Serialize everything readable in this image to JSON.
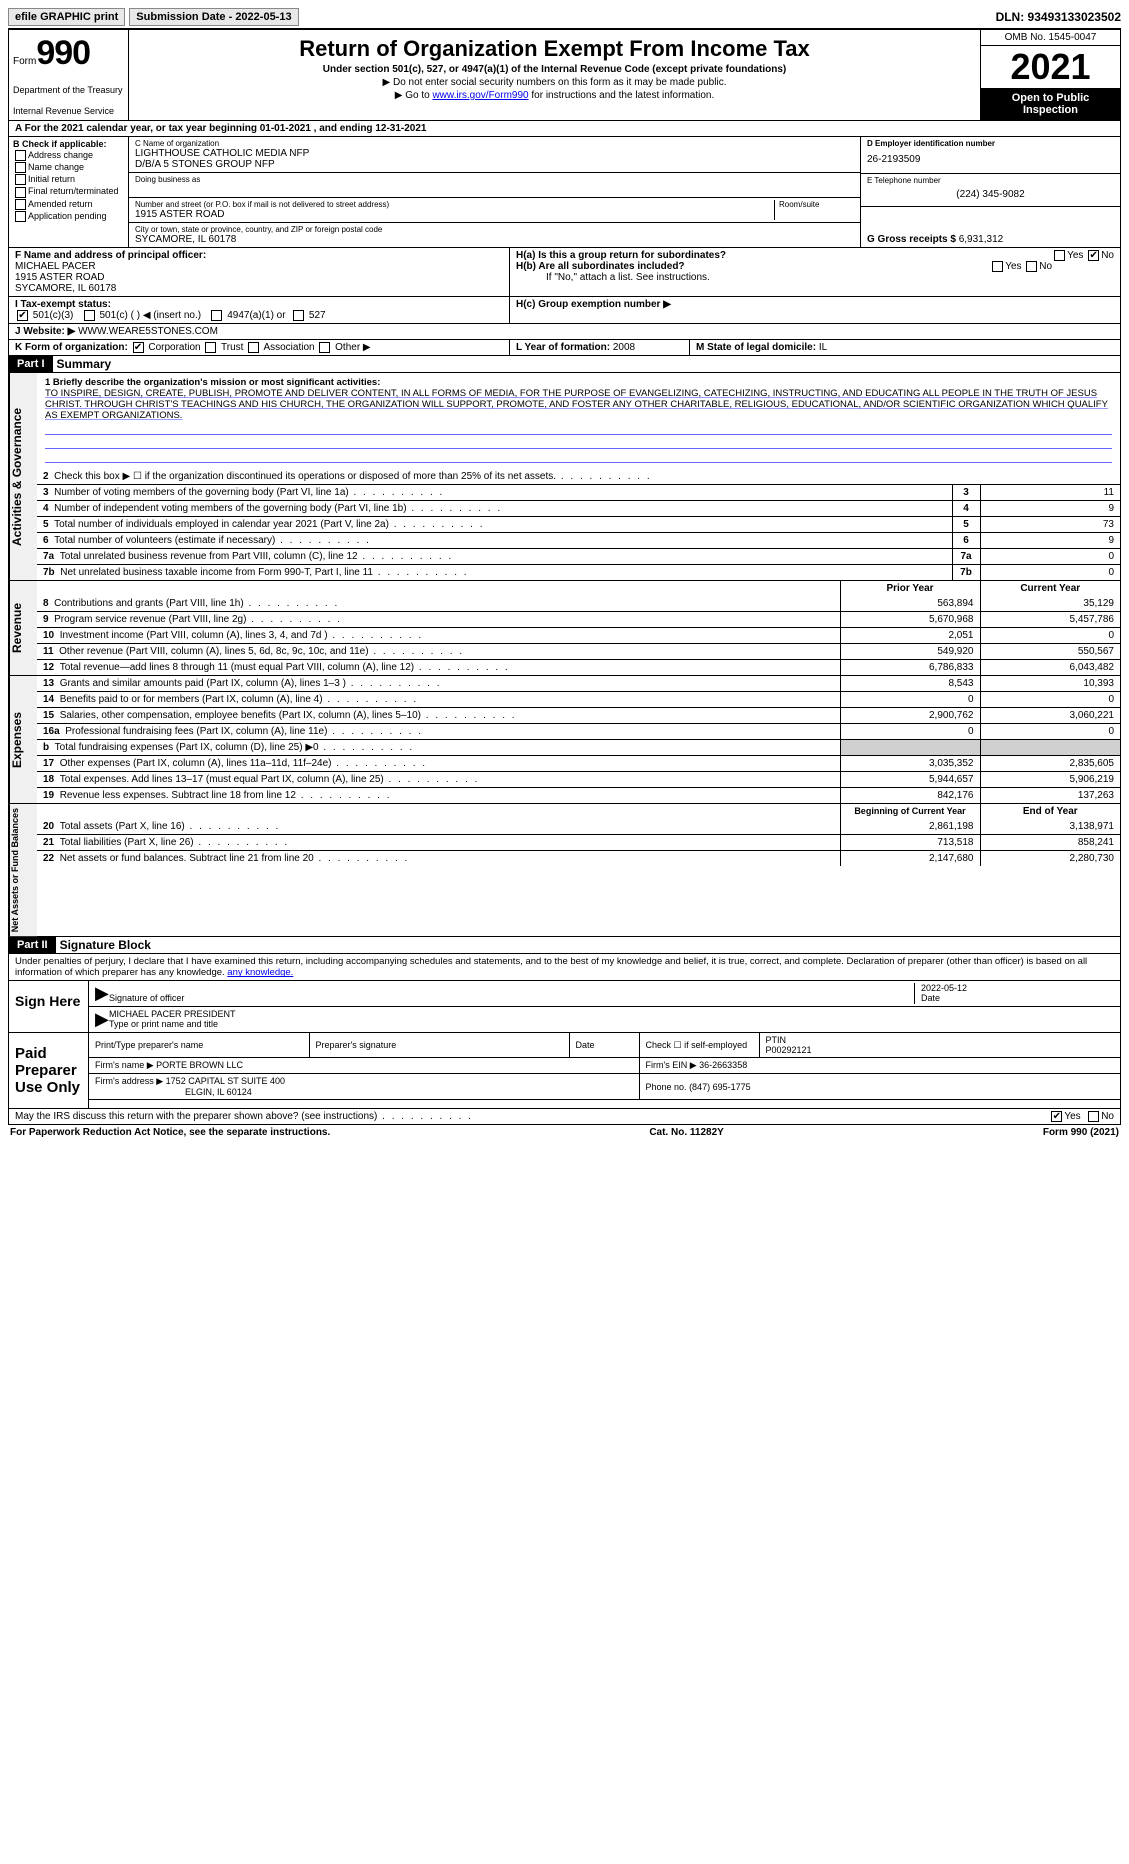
{
  "topbar": {
    "efile": "efile GRAPHIC print",
    "submission": "Submission Date - 2022-05-13",
    "dln": "DLN: 93493133023502"
  },
  "header": {
    "form_word": "Form",
    "form_number": "990",
    "dept": "Department of the Treasury",
    "irs": "Internal Revenue Service",
    "title": "Return of Organization Exempt From Income Tax",
    "sub": "Under section 501(c), 527, or 4947(a)(1) of the Internal Revenue Code (except private foundations)",
    "line1": "▶ Do not enter social security numbers on this form as it may be made public.",
    "line2_pre": "▶ Go to ",
    "line2_link": "www.irs.gov/Form990",
    "line2_post": " for instructions and the latest information.",
    "omb": "OMB No. 1545-0047",
    "year": "2021",
    "open": "Open to Public Inspection"
  },
  "period": "A For the 2021 calendar year, or tax year beginning 01-01-2021   , and ending 12-31-2021",
  "boxB": {
    "title": "B Check if applicable:",
    "items": [
      "Address change",
      "Name change",
      "Initial return",
      "Final return/terminated",
      "Amended return",
      "Application pending"
    ]
  },
  "boxC": {
    "name_lbl": "C Name of organization",
    "name1": "LIGHTHOUSE CATHOLIC MEDIA NFP",
    "name2": "D/B/A 5 STONES GROUP NFP",
    "dba_lbl": "Doing business as",
    "street_lbl": "Number and street (or P.O. box if mail is not delivered to street address)",
    "room_lbl": "Room/suite",
    "street": "1915 ASTER ROAD",
    "city_lbl": "City or town, state or province, country, and ZIP or foreign postal code",
    "city": "SYCAMORE, IL  60178"
  },
  "boxD": {
    "lbl": "D Employer identification number",
    "val": "26-2193509"
  },
  "boxE": {
    "lbl": "E Telephone number",
    "val": "(224) 345-9082"
  },
  "boxG": {
    "lbl": "G Gross receipts $",
    "val": "6,931,312"
  },
  "boxF": {
    "lbl": "F  Name and address of principal officer:",
    "name": "MICHAEL PACER",
    "addr1": "1915 ASTER ROAD",
    "addr2": "SYCAMORE, IL  60178"
  },
  "boxH": {
    "a": "H(a)  Is this a group return for subordinates?",
    "b": "H(b)  Are all subordinates included?",
    "b_note": "If \"No,\" attach a list. See instructions.",
    "c": "H(c)  Group exemption number ▶",
    "yes": "Yes",
    "no": "No"
  },
  "rowI": {
    "lbl": "I   Tax-exempt status:",
    "c501c3": "501(c)(3)",
    "c501c": "501(c) (  ) ◀ (insert no.)",
    "c4947": "4947(a)(1) or",
    "c527": "527"
  },
  "rowJ": {
    "lbl": "J   Website: ▶",
    "val": "WWW.WEARE5STONES.COM"
  },
  "rowK": {
    "lbl": "K Form of organization:",
    "corp": "Corporation",
    "trust": "Trust",
    "assoc": "Association",
    "other": "Other ▶"
  },
  "rowL": {
    "lbl": "L Year of formation:",
    "val": "2008"
  },
  "rowM": {
    "lbl": "M State of legal domicile:",
    "val": "IL"
  },
  "part1": {
    "hdr": "Part I",
    "title": "Summary"
  },
  "mission": {
    "q": "1  Briefly describe the organization's mission or most significant activities:",
    "text": "TO INSPIRE, DESIGN, CREATE, PUBLISH, PROMOTE AND DELIVER CONTENT, IN ALL FORMS OF MEDIA, FOR THE PURPOSE OF EVANGELIZING, CATECHIZING, INSTRUCTING, AND EDUCATING ALL PEOPLE IN THE TRUTH OF JESUS CHRIST. THROUGH CHRIST'S TEACHINGS AND HIS CHURCH, THE ORGANIZATION WILL SUPPORT, PROMOTE, AND FOSTER ANY OTHER CHARITABLE, RELIGIOUS, EDUCATIONAL, AND/OR SCIENTIFIC ORGANIZATION WHICH QUALIFY AS EXEMPT ORGANIZATIONS."
  },
  "gov_lines": [
    {
      "n": "2",
      "d": "Check this box ▶ ☐ if the organization discontinued its operations or disposed of more than 25% of its net assets.",
      "v": ""
    },
    {
      "n": "3",
      "d": "Number of voting members of the governing body (Part VI, line 1a)",
      "v": "11"
    },
    {
      "n": "4",
      "d": "Number of independent voting members of the governing body (Part VI, line 1b)",
      "v": "9"
    },
    {
      "n": "5",
      "d": "Total number of individuals employed in calendar year 2021 (Part V, line 2a)",
      "v": "73"
    },
    {
      "n": "6",
      "d": "Total number of volunteers (estimate if necessary)",
      "v": "9"
    },
    {
      "n": "7a",
      "d": "Total unrelated business revenue from Part VIII, column (C), line 12",
      "v": "0"
    },
    {
      "n": "7b",
      "d": "Net unrelated business taxable income from Form 990-T, Part I, line 11",
      "v": "0"
    }
  ],
  "rev_hdr": {
    "prior": "Prior Year",
    "curr": "Current Year"
  },
  "rev_lines": [
    {
      "n": "8",
      "d": "Contributions and grants (Part VIII, line 1h)",
      "p": "563,894",
      "c": "35,129"
    },
    {
      "n": "9",
      "d": "Program service revenue (Part VIII, line 2g)",
      "p": "5,670,968",
      "c": "5,457,786"
    },
    {
      "n": "10",
      "d": "Investment income (Part VIII, column (A), lines 3, 4, and 7d )",
      "p": "2,051",
      "c": "0"
    },
    {
      "n": "11",
      "d": "Other revenue (Part VIII, column (A), lines 5, 6d, 8c, 9c, 10c, and 11e)",
      "p": "549,920",
      "c": "550,567"
    },
    {
      "n": "12",
      "d": "Total revenue—add lines 8 through 11 (must equal Part VIII, column (A), line 12)",
      "p": "6,786,833",
      "c": "6,043,482"
    }
  ],
  "exp_lines": [
    {
      "n": "13",
      "d": "Grants and similar amounts paid (Part IX, column (A), lines 1–3 )",
      "p": "8,543",
      "c": "10,393"
    },
    {
      "n": "14",
      "d": "Benefits paid to or for members (Part IX, column (A), line 4)",
      "p": "0",
      "c": "0"
    },
    {
      "n": "15",
      "d": "Salaries, other compensation, employee benefits (Part IX, column (A), lines 5–10)",
      "p": "2,900,762",
      "c": "3,060,221"
    },
    {
      "n": "16a",
      "d": "Professional fundraising fees (Part IX, column (A), line 11e)",
      "p": "0",
      "c": "0"
    },
    {
      "n": "b",
      "d": "Total fundraising expenses (Part IX, column (D), line 25) ▶0",
      "p": "",
      "c": "",
      "shade": true
    },
    {
      "n": "17",
      "d": "Other expenses (Part IX, column (A), lines 11a–11d, 11f–24e)",
      "p": "3,035,352",
      "c": "2,835,605"
    },
    {
      "n": "18",
      "d": "Total expenses. Add lines 13–17 (must equal Part IX, column (A), line 25)",
      "p": "5,944,657",
      "c": "5,906,219"
    },
    {
      "n": "19",
      "d": "Revenue less expenses. Subtract line 18 from line 12",
      "p": "842,176",
      "c": "137,263"
    }
  ],
  "net_hdr": {
    "beg": "Beginning of Current Year",
    "end": "End of Year"
  },
  "net_lines": [
    {
      "n": "20",
      "d": "Total assets (Part X, line 16)",
      "p": "2,861,198",
      "c": "3,138,971"
    },
    {
      "n": "21",
      "d": "Total liabilities (Part X, line 26)",
      "p": "713,518",
      "c": "858,241"
    },
    {
      "n": "22",
      "d": "Net assets or fund balances. Subtract line 21 from line 20",
      "p": "2,147,680",
      "c": "2,280,730"
    }
  ],
  "side_labels": {
    "gov": "Activities & Governance",
    "rev": "Revenue",
    "exp": "Expenses",
    "net": "Net Assets or Fund Balances"
  },
  "part2": {
    "hdr": "Part II",
    "title": "Signature Block"
  },
  "penalties": "Under penalties of perjury, I declare that I have examined this return, including accompanying schedules and statements, and to the best of my knowledge and belief, it is true, correct, and complete. Declaration of preparer (other than officer) is based on all information of which preparer has any knowledge.",
  "sign": {
    "here": "Sign Here",
    "sig_lbl": "Signature of officer",
    "date_lbl": "Date",
    "date": "2022-05-12",
    "name": "MICHAEL PACER  PRESIDENT",
    "name_lbl": "Type or print name and title"
  },
  "prep": {
    "title": "Paid Preparer Use Only",
    "h_name": "Print/Type preparer's name",
    "h_sig": "Preparer's signature",
    "h_date": "Date",
    "h_chk": "Check ☐ if self-employed",
    "h_ptin": "PTIN",
    "ptin": "P00292121",
    "firm_lbl": "Firm's name  ▶",
    "firm": "PORTE BROWN LLC",
    "ein_lbl": "Firm's EIN ▶",
    "ein": "36-2663358",
    "addr_lbl": "Firm's address ▶",
    "addr1": "1752 CAPITAL ST SUITE 400",
    "addr2": "ELGIN, IL  60124",
    "phone_lbl": "Phone no.",
    "phone": "(847) 695-1775"
  },
  "discuss": {
    "q": "May the IRS discuss this return with the preparer shown above? (see instructions)",
    "yes": "Yes",
    "no": "No"
  },
  "footer": {
    "left": "For Paperwork Reduction Act Notice, see the separate instructions.",
    "mid": "Cat. No. 11282Y",
    "right": "Form 990 (2021)"
  }
}
